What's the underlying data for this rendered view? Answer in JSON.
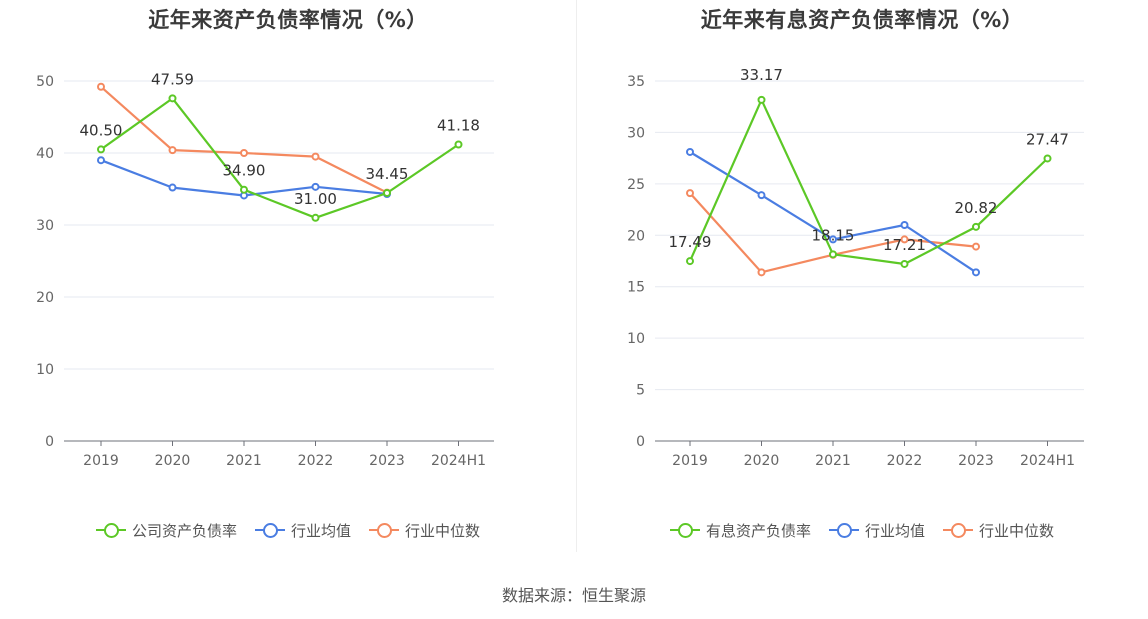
{
  "chart_data": [
    {
      "type": "line",
      "title": "近年来资产负债率情况（%）",
      "categories": [
        "2019",
        "2020",
        "2021",
        "2022",
        "2023",
        "2024H1"
      ],
      "ylim": [
        0,
        50
      ],
      "yticks": [
        0,
        10,
        20,
        30,
        40,
        50
      ],
      "grid": true,
      "legend_position": "bottom",
      "series": [
        {
          "name": "公司资产负债率",
          "color": "#5cc826",
          "values": [
            40.5,
            47.59,
            34.9,
            31.0,
            34.45,
            41.18
          ],
          "labels": [
            "40.50",
            "47.59",
            "34.90",
            "31.00",
            "34.45",
            "41.18"
          ]
        },
        {
          "name": "行业均值",
          "color": "#4a7de2",
          "values": [
            39.0,
            35.2,
            34.1,
            35.3,
            34.3,
            null
          ]
        },
        {
          "name": "行业中位数",
          "color": "#f4895f",
          "values": [
            49.2,
            40.4,
            40.0,
            39.5,
            34.5,
            null
          ]
        }
      ]
    },
    {
      "type": "line",
      "title": "近年来有息资产负债率情况（%）",
      "categories": [
        "2019",
        "2020",
        "2021",
        "2022",
        "2023",
        "2024H1"
      ],
      "ylim": [
        0,
        35
      ],
      "yticks": [
        0,
        5,
        10,
        15,
        20,
        25,
        30,
        35
      ],
      "grid": true,
      "legend_position": "bottom",
      "series": [
        {
          "name": "有息资产负债率",
          "color": "#5cc826",
          "values": [
            17.49,
            33.17,
            18.15,
            17.21,
            20.82,
            27.47
          ],
          "labels": [
            "17.49",
            "33.17",
            "18.15",
            "17.21",
            "20.82",
            "27.47"
          ]
        },
        {
          "name": "行业均值",
          "color": "#4a7de2",
          "values": [
            28.1,
            23.9,
            19.6,
            21.0,
            16.4,
            null
          ]
        },
        {
          "name": "行业中位数",
          "color": "#f4895f",
          "values": [
            24.1,
            16.4,
            18.1,
            19.6,
            18.9,
            null
          ]
        }
      ]
    }
  ],
  "source_text": "数据来源：恒生聚源"
}
